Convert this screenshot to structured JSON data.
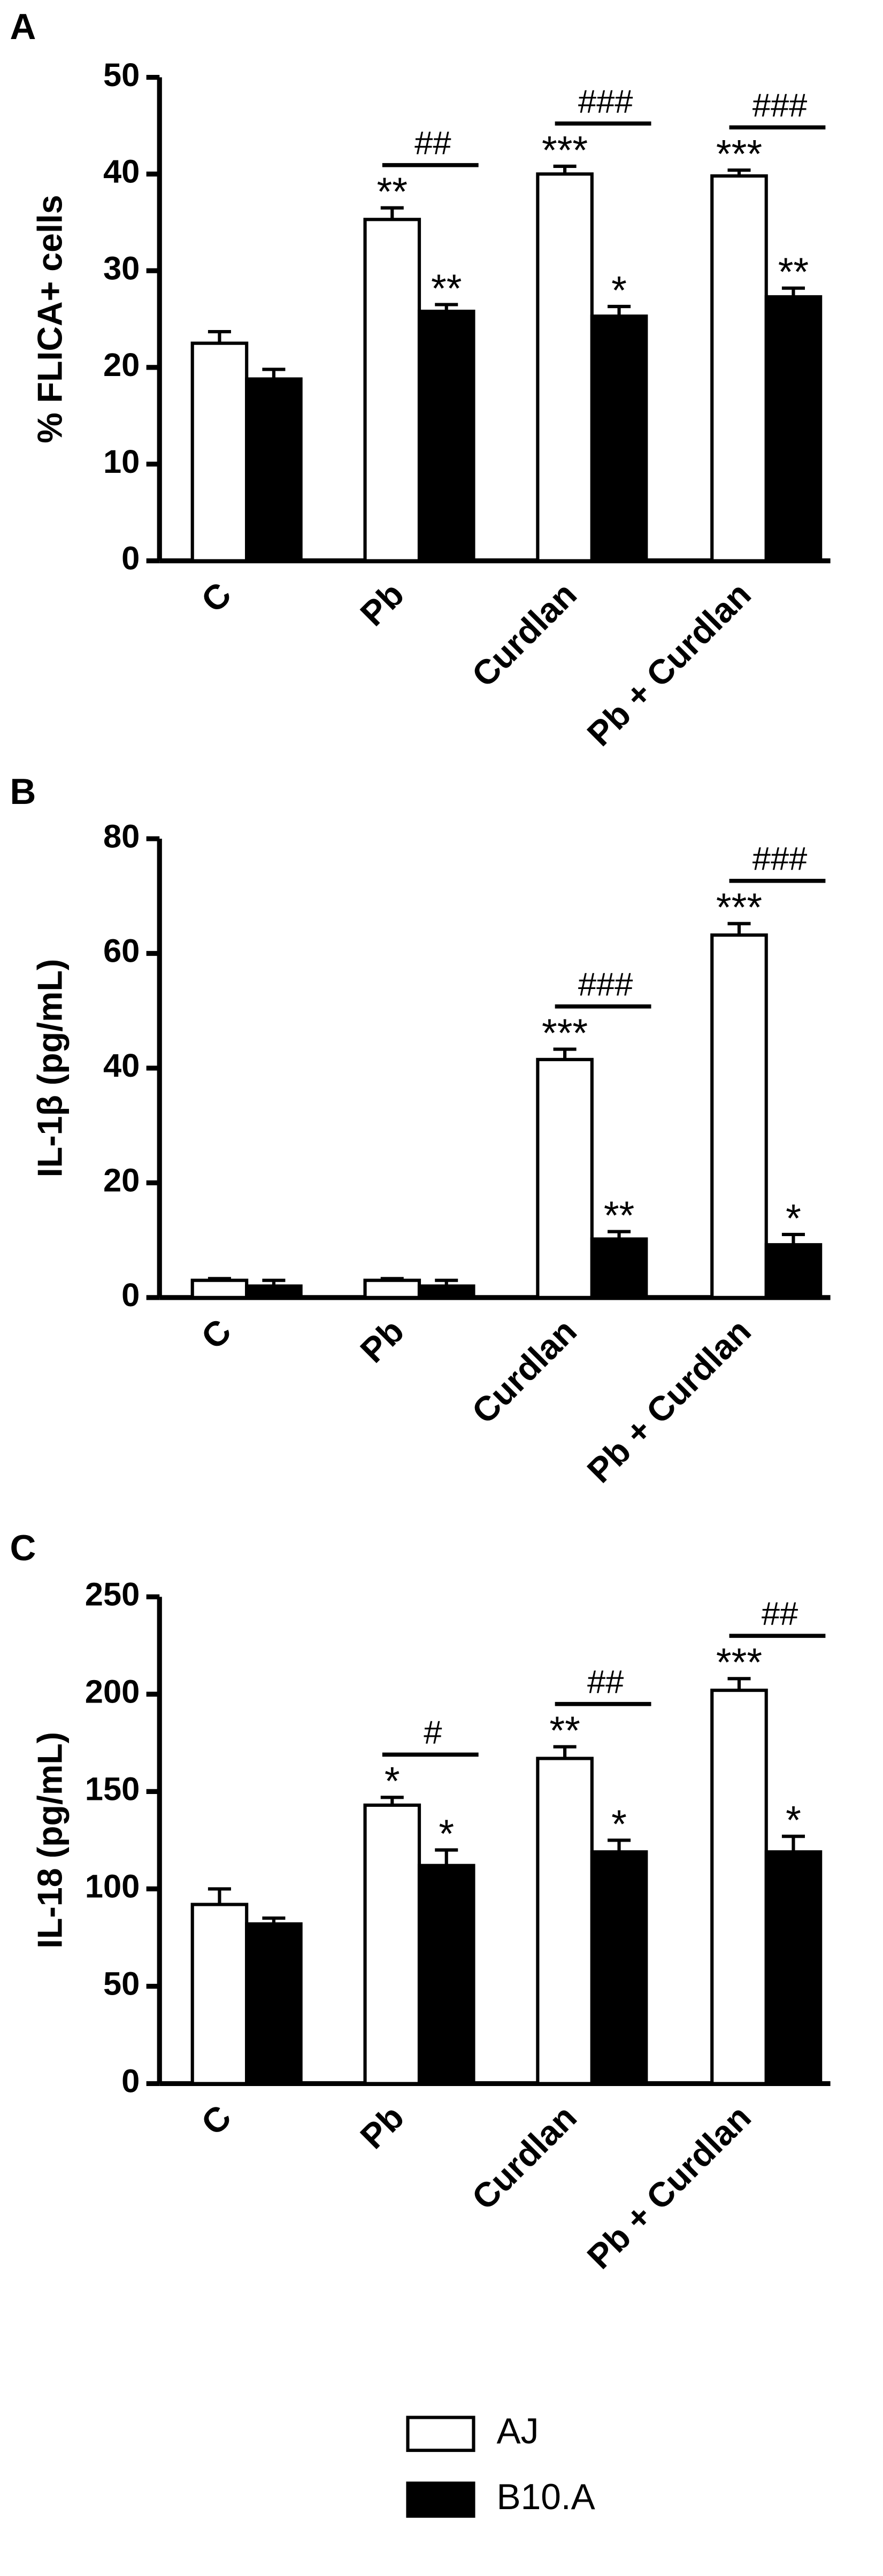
{
  "chart_data": [
    {
      "type": "bar",
      "panel": "A",
      "ylabel": "% FLICA+ cells",
      "categories": [
        "C",
        "Pb",
        "Curdlan",
        "Pb + Curdlan"
      ],
      "ylim": [
        0,
        50
      ],
      "yticks": [
        0,
        10,
        20,
        30,
        40,
        50
      ],
      "series": [
        {
          "name": "AJ",
          "color": "#ffffff",
          "values": [
            22.5,
            35.3,
            40.0,
            39.8
          ],
          "errors": [
            1.2,
            1.2,
            0.8,
            0.6
          ],
          "annotations": [
            null,
            "**",
            "***",
            "***"
          ]
        },
        {
          "name": "B10.A",
          "color": "#000000",
          "values": [
            18.8,
            25.8,
            25.3,
            27.3
          ],
          "errors": [
            1.0,
            0.7,
            1.0,
            0.9
          ],
          "annotations": [
            null,
            "**",
            "*",
            "**"
          ]
        }
      ],
      "significance": [
        null,
        "##",
        "###",
        "###"
      ]
    },
    {
      "type": "bar",
      "panel": "B",
      "ylabel": "IL-1β (pg/mL)",
      "categories": [
        "C",
        "Pb",
        "Curdlan",
        "Pb + Curdlan"
      ],
      "ylim": [
        0,
        80
      ],
      "yticks": [
        0,
        20,
        40,
        60,
        80
      ],
      "series": [
        {
          "name": "AJ",
          "color": "#ffffff",
          "values": [
            3.0,
            3.0,
            41.5,
            63.2
          ],
          "errors": [
            0.3,
            0.3,
            1.8,
            2.0
          ],
          "annotations": [
            null,
            null,
            "***",
            "***"
          ]
        },
        {
          "name": "B10.A",
          "color": "#000000",
          "values": [
            2.0,
            2.0,
            10.2,
            9.2
          ],
          "errors": [
            1.0,
            1.0,
            1.3,
            1.8
          ],
          "annotations": [
            null,
            null,
            "**",
            "*"
          ]
        }
      ],
      "significance": [
        null,
        null,
        "###",
        "###"
      ]
    },
    {
      "type": "bar",
      "panel": "C",
      "ylabel": "IL-18 (pg/mL)",
      "categories": [
        "C",
        "Pb",
        "Curdlan",
        "Pb + Curdlan"
      ],
      "ylim": [
        0,
        250
      ],
      "yticks": [
        0,
        50,
        100,
        150,
        200,
        250
      ],
      "series": [
        {
          "name": "AJ",
          "color": "#ffffff",
          "values": [
            92,
            143,
            167,
            202
          ],
          "errors": [
            8,
            4,
            6,
            6
          ],
          "annotations": [
            null,
            "*",
            "**",
            "***"
          ]
        },
        {
          "name": "B10.A",
          "color": "#000000",
          "values": [
            82,
            112,
            119,
            119
          ],
          "errors": [
            3,
            8,
            6,
            8
          ],
          "annotations": [
            null,
            "*",
            "*",
            "*"
          ]
        }
      ],
      "significance": [
        null,
        "#",
        "##",
        "##"
      ]
    }
  ]
}
